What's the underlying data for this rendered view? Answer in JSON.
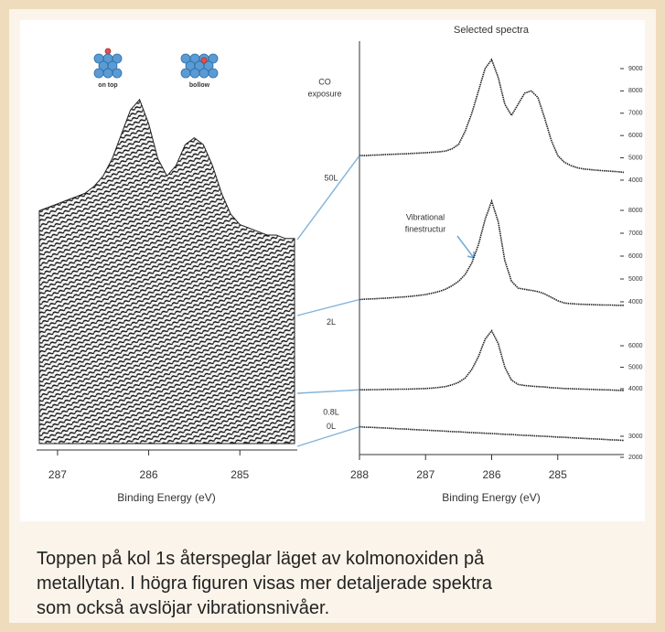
{
  "chart_data": [
    {
      "type": "waterfall",
      "labels": [
        "on top",
        "bollow"
      ],
      "xlabel": "Binding Energy (eV)",
      "xlim": [
        287.23,
        284.37
      ],
      "xticks": [
        287,
        286,
        285
      ],
      "x": [
        287.2,
        287.1,
        287.0,
        286.9,
        286.8,
        286.7,
        286.6,
        286.5,
        286.4,
        286.3,
        286.2,
        286.1,
        286.0,
        285.9,
        285.8,
        285.7,
        285.6,
        285.5,
        285.4,
        285.3,
        285.2,
        285.1,
        285.0,
        284.9,
        284.8,
        284.7,
        284.6,
        284.5,
        284.4
      ],
      "values": [
        67,
        68,
        69,
        70,
        71,
        72,
        74,
        77,
        82,
        89,
        96,
        99,
        92,
        82,
        77,
        80,
        86,
        88,
        86,
        80,
        72,
        66,
        63,
        62,
        61,
        60,
        60,
        59,
        59
      ]
    },
    {
      "type": "line",
      "title": "Selected spectra",
      "legend_title": [
        "CO",
        "exposure"
      ],
      "annotation": [
        "Vibrational",
        "finestructur"
      ],
      "xlabel": "Binding Energy (eV)",
      "xlim": [
        288,
        284
      ],
      "xticks": [
        288,
        287,
        286,
        285
      ],
      "x": [
        288.0,
        287.9,
        287.8,
        287.7,
        287.6,
        287.5,
        287.4,
        287.3,
        287.2,
        287.1,
        287.0,
        286.9,
        286.8,
        286.7,
        286.6,
        286.5,
        286.4,
        286.3,
        286.2,
        286.1,
        286.0,
        285.9,
        285.8,
        285.7,
        285.6,
        285.5,
        285.4,
        285.3,
        285.2,
        285.1,
        285.0,
        284.9,
        284.8,
        284.7,
        284.6,
        284.5,
        284.4,
        284.3,
        284.2,
        284.1,
        284.0
      ],
      "series": [
        {
          "name": "50L",
          "color": "#222222",
          "ylim": [
            3670,
            10230
          ],
          "yticks": [
            4000,
            5000,
            6000,
            7000,
            8000,
            9000
          ],
          "values": [
            5100,
            5100,
            5120,
            5130,
            5150,
            5160,
            5170,
            5180,
            5200,
            5210,
            5230,
            5250,
            5270,
            5300,
            5400,
            5600,
            6200,
            7000,
            8000,
            9000,
            9400,
            8600,
            7400,
            6900,
            7400,
            7900,
            8000,
            7700,
            6800,
            5800,
            5100,
            4800,
            4650,
            4550,
            4500,
            4470,
            4440,
            4420,
            4400,
            4380,
            4350
          ]
        },
        {
          "name": "2L",
          "color": "#222222",
          "ylim": [
            3200,
            8800
          ],
          "yticks": [
            4000,
            5000,
            6000,
            7000,
            8000
          ],
          "values": [
            4100,
            4120,
            4130,
            4150,
            4160,
            4180,
            4200,
            4220,
            4250,
            4280,
            4320,
            4380,
            4450,
            4550,
            4700,
            4900,
            5200,
            5700,
            6500,
            7600,
            8400,
            7500,
            5800,
            4900,
            4600,
            4550,
            4500,
            4450,
            4350,
            4200,
            4050,
            3950,
            3920,
            3900,
            3890,
            3880,
            3870,
            3860,
            3860,
            3850,
            3850
          ]
        },
        {
          "name": "0.8L",
          "color": "#222222",
          "ylim": [
            3150,
            6980
          ],
          "yticks": [
            4000,
            5000,
            6000
          ],
          "values": [
            3950,
            3950,
            3960,
            3960,
            3970,
            3970,
            3980,
            3980,
            3990,
            4000,
            4010,
            4030,
            4060,
            4100,
            4180,
            4300,
            4500,
            4900,
            5500,
            6300,
            6700,
            6100,
            5000,
            4400,
            4200,
            4150,
            4120,
            4100,
            4080,
            4050,
            4030,
            4010,
            4000,
            3990,
            3980,
            3970,
            3960,
            3950,
            3940,
            3930,
            3920
          ]
        },
        {
          "name": "0L",
          "color": "#222222",
          "ylim": [
            2000,
            4170
          ],
          "yticks": [
            2000,
            3000
          ],
          "values": [
            3450,
            3430,
            3420,
            3400,
            3390,
            3370,
            3350,
            3340,
            3320,
            3300,
            3290,
            3270,
            3260,
            3240,
            3220,
            3210,
            3190,
            3170,
            3160,
            3140,
            3130,
            3110,
            3090,
            3080,
            3060,
            3040,
            3030,
            3010,
            3000,
            2980,
            2960,
            2950,
            2930,
            2910,
            2900,
            2880,
            2870,
            2850,
            2830,
            2820,
            2800
          ]
        }
      ]
    }
  ],
  "caption": [
    "Toppen på kol 1s återspeglar läget av kolmonoxiden på",
    "metallytan. I högra figuren visas mer detaljerade spektra",
    "som också avslöjar vibrationsnivåer."
  ]
}
